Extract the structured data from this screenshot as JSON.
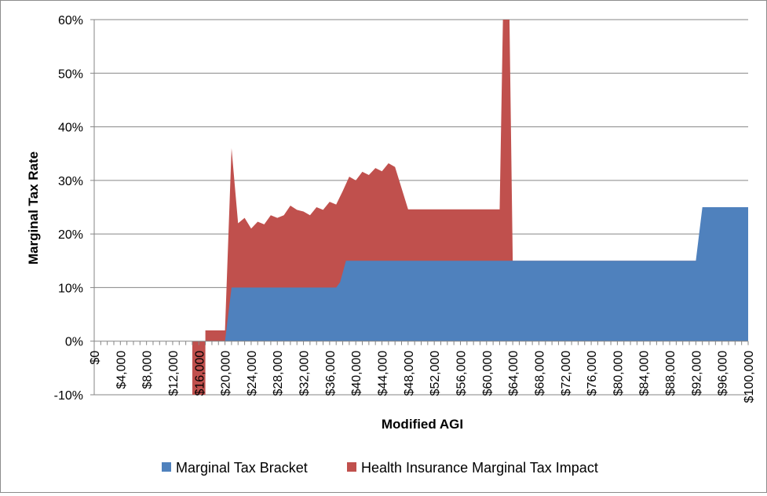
{
  "chart_data": {
    "type": "area",
    "xlabel": "Modified AGI",
    "ylabel": "Marginal Tax Rate",
    "xlim": [
      0,
      100000
    ],
    "ylim": [
      -10,
      60
    ],
    "y_ticks": [
      -10,
      0,
      10,
      20,
      30,
      40,
      50,
      60
    ],
    "y_tick_labels": [
      "-10%",
      "0%",
      "10%",
      "20%",
      "30%",
      "40%",
      "50%",
      "60%"
    ],
    "x_ticks": [
      0,
      4000,
      8000,
      12000,
      16000,
      20000,
      24000,
      28000,
      32000,
      36000,
      40000,
      44000,
      48000,
      52000,
      56000,
      60000,
      64000,
      68000,
      72000,
      76000,
      80000,
      84000,
      88000,
      92000,
      96000,
      100000
    ],
    "x_tick_labels": [
      "$0",
      "$4,000",
      "$8,000",
      "$12,000",
      "$16,000",
      "$20,000",
      "$24,000",
      "$28,000",
      "$32,000",
      "$36,000",
      "$40,000",
      "$44,000",
      "$48,000",
      "$52,000",
      "$56,000",
      "$60,000",
      "$64,000",
      "$68,000",
      "$72,000",
      "$76,000",
      "$80,000",
      "$84,000",
      "$88,000",
      "$92,000",
      "$96,000",
      "$100,000"
    ],
    "grid": "horizontal",
    "legend_position": "bottom",
    "series": [
      {
        "name": "Marginal Tax Bracket",
        "color": "#4f81bd",
        "points": [
          [
            0,
            0
          ],
          [
            20000,
            0
          ],
          [
            21000,
            10
          ],
          [
            37000,
            10
          ],
          [
            37600,
            11
          ],
          [
            38500,
            15
          ],
          [
            92000,
            15
          ],
          [
            93000,
            25
          ],
          [
            100000,
            25
          ]
        ]
      },
      {
        "name": "Health Insurance Marginal Tax Impact",
        "color": "#c0504d",
        "baseline": "Marginal Tax Bracket",
        "points": [
          [
            0,
            0
          ],
          [
            15000,
            0
          ],
          [
            15000,
            -10
          ],
          [
            17000,
            -10
          ],
          [
            17000,
            2
          ],
          [
            20000,
            2
          ],
          [
            21000,
            36
          ],
          [
            22000,
            22
          ],
          [
            23000,
            23
          ],
          [
            24000,
            21
          ],
          [
            25000,
            22.3
          ],
          [
            26000,
            21.8
          ],
          [
            27000,
            23.5
          ],
          [
            28000,
            23
          ],
          [
            29000,
            23.5
          ],
          [
            30000,
            25.3
          ],
          [
            31000,
            24.5
          ],
          [
            32000,
            24.2
          ],
          [
            33000,
            23.5
          ],
          [
            34000,
            25
          ],
          [
            35000,
            24.5
          ],
          [
            36000,
            26
          ],
          [
            37000,
            25.5
          ],
          [
            38000,
            28
          ],
          [
            39000,
            30.7
          ],
          [
            40000,
            30
          ],
          [
            41000,
            31.6
          ],
          [
            42000,
            31
          ],
          [
            43000,
            32.3
          ],
          [
            44000,
            31.7
          ],
          [
            45000,
            33.2
          ],
          [
            46000,
            32.5
          ],
          [
            48000,
            24.6
          ],
          [
            62000,
            24.6
          ],
          [
            62500,
            60
          ],
          [
            63500,
            60
          ],
          [
            64000,
            15
          ],
          [
            100000,
            15
          ]
        ]
      }
    ]
  }
}
